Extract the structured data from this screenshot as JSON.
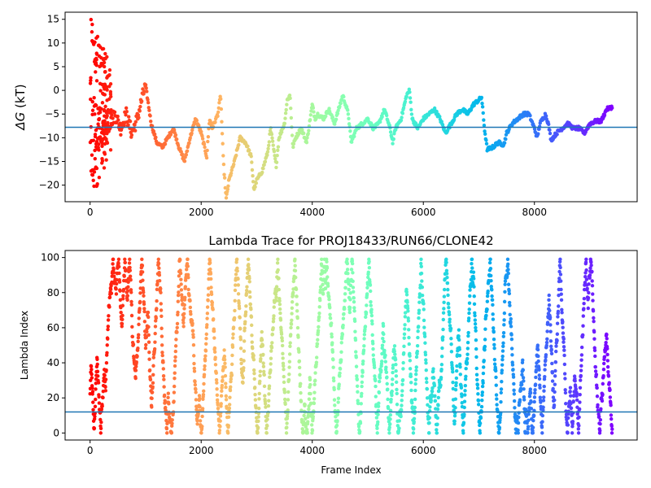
{
  "chart_data": [
    {
      "type": "scatter",
      "title": "",
      "xlabel": "",
      "ylabel": "ΔG (kT)",
      "ylabel_symbol": "ΔG",
      "ylabel_unit": "(kT)",
      "xlim": [
        -450,
        9850
      ],
      "ylim": [
        -23.5,
        16.5
      ],
      "xticks": [
        0,
        2000,
        4000,
        6000,
        8000
      ],
      "xtick_labels": [
        "0",
        "2000",
        "4000",
        "6000",
        "8000"
      ],
      "yticks": [
        -20,
        -15,
        -10,
        -5,
        0,
        5,
        10,
        15
      ],
      "ytick_labels": [
        "−20",
        "−15",
        "−10",
        "−5",
        "0",
        "5",
        "10",
        "15"
      ],
      "hline": -7.8,
      "hline_color": "#1f77b4",
      "colormap": "rainbow",
      "grid": false,
      "trace_anchors": [
        [
          0,
          0
        ],
        [
          60,
          -8
        ],
        [
          150,
          -12
        ],
        [
          250,
          -8
        ],
        [
          350,
          -7
        ],
        [
          450,
          -5
        ],
        [
          550,
          -8
        ],
        [
          650,
          -5
        ],
        [
          750,
          -9
        ],
        [
          850,
          -6
        ],
        [
          950,
          -1
        ],
        [
          1000,
          1
        ],
        [
          1100,
          -7
        ],
        [
          1200,
          -11
        ],
        [
          1300,
          -12
        ],
        [
          1400,
          -10
        ],
        [
          1500,
          -8
        ],
        [
          1600,
          -12
        ],
        [
          1700,
          -15
        ],
        [
          1800,
          -10
        ],
        [
          1900,
          -6
        ],
        [
          2000,
          -9
        ],
        [
          2100,
          -14
        ],
        [
          2150,
          -6
        ],
        [
          2200,
          -8
        ],
        [
          2300,
          -5
        ],
        [
          2350,
          -1
        ],
        [
          2400,
          -15
        ],
        [
          2450,
          -23
        ],
        [
          2500,
          -19
        ],
        [
          2600,
          -15
        ],
        [
          2700,
          -10
        ],
        [
          2800,
          -11
        ],
        [
          2900,
          -14
        ],
        [
          2950,
          -21
        ],
        [
          3000,
          -19
        ],
        [
          3100,
          -17
        ],
        [
          3200,
          -13
        ],
        [
          3250,
          -8
        ],
        [
          3300,
          -12
        ],
        [
          3350,
          -16
        ],
        [
          3400,
          -10
        ],
        [
          3500,
          -7
        ],
        [
          3550,
          -2
        ],
        [
          3600,
          -1
        ],
        [
          3650,
          -12
        ],
        [
          3700,
          -10
        ],
        [
          3800,
          -8
        ],
        [
          3900,
          -11
        ],
        [
          3950,
          -7
        ],
        [
          4000,
          -3
        ],
        [
          4050,
          -6
        ],
        [
          4100,
          -5
        ],
        [
          4200,
          -6
        ],
        [
          4300,
          -4
        ],
        [
          4400,
          -7
        ],
        [
          4500,
          -3
        ],
        [
          4550,
          -1
        ],
        [
          4650,
          -5
        ],
        [
          4700,
          -11
        ],
        [
          4800,
          -8
        ],
        [
          4900,
          -7
        ],
        [
          5000,
          -6
        ],
        [
          5100,
          -8
        ],
        [
          5200,
          -7
        ],
        [
          5300,
          -4
        ],
        [
          5400,
          -8
        ],
        [
          5450,
          -11
        ],
        [
          5500,
          -8
        ],
        [
          5600,
          -6
        ],
        [
          5700,
          -1
        ],
        [
          5750,
          0
        ],
        [
          5800,
          -6
        ],
        [
          5900,
          -8
        ],
        [
          6000,
          -6
        ],
        [
          6100,
          -5
        ],
        [
          6200,
          -4
        ],
        [
          6300,
          -6
        ],
        [
          6400,
          -9
        ],
        [
          6500,
          -7
        ],
        [
          6600,
          -5
        ],
        [
          6700,
          -4
        ],
        [
          6800,
          -5
        ],
        [
          6900,
          -3
        ],
        [
          7000,
          -2
        ],
        [
          7050,
          -1.5
        ],
        [
          7100,
          -8
        ],
        [
          7150,
          -12.5
        ],
        [
          7250,
          -12
        ],
        [
          7350,
          -11
        ],
        [
          7450,
          -11.5
        ],
        [
          7500,
          -9
        ],
        [
          7600,
          -7
        ],
        [
          7700,
          -6
        ],
        [
          7800,
          -5
        ],
        [
          7900,
          -5
        ],
        [
          8000,
          -8
        ],
        [
          8050,
          -10
        ],
        [
          8100,
          -7
        ],
        [
          8200,
          -5
        ],
        [
          8250,
          -7
        ],
        [
          8300,
          -10.5
        ],
        [
          8400,
          -9
        ],
        [
          8500,
          -8
        ],
        [
          8600,
          -7
        ],
        [
          8700,
          -8
        ],
        [
          8800,
          -8
        ],
        [
          8900,
          -9
        ],
        [
          9000,
          -7
        ],
        [
          9100,
          -6.5
        ],
        [
          9200,
          -6.5
        ],
        [
          9300,
          -4
        ],
        [
          9400,
          -3.5
        ]
      ],
      "early_scatter_x_range": [
        0,
        380
      ],
      "early_scatter_y_range": [
        -23.5,
        16
      ]
    },
    {
      "type": "scatter",
      "title": "Lambda Trace for PROJ18433/RUN66/CLONE42",
      "xlabel": "Frame Index",
      "ylabel": "Lambda Index",
      "xlim": [
        -450,
        9850
      ],
      "ylim": [
        -4,
        104
      ],
      "xticks": [
        0,
        2000,
        4000,
        6000,
        8000
      ],
      "xtick_labels": [
        "0",
        "2000",
        "4000",
        "6000",
        "8000"
      ],
      "yticks": [
        0,
        20,
        40,
        60,
        80,
        100
      ],
      "ytick_labels": [
        "0",
        "20",
        "40",
        "60",
        "80",
        "100"
      ],
      "hline": 12,
      "hline_color": "#1f77b4",
      "colormap": "rainbow",
      "grid": false,
      "frame_range": [
        0,
        9400
      ],
      "lambda_range": [
        0,
        99
      ]
    }
  ]
}
